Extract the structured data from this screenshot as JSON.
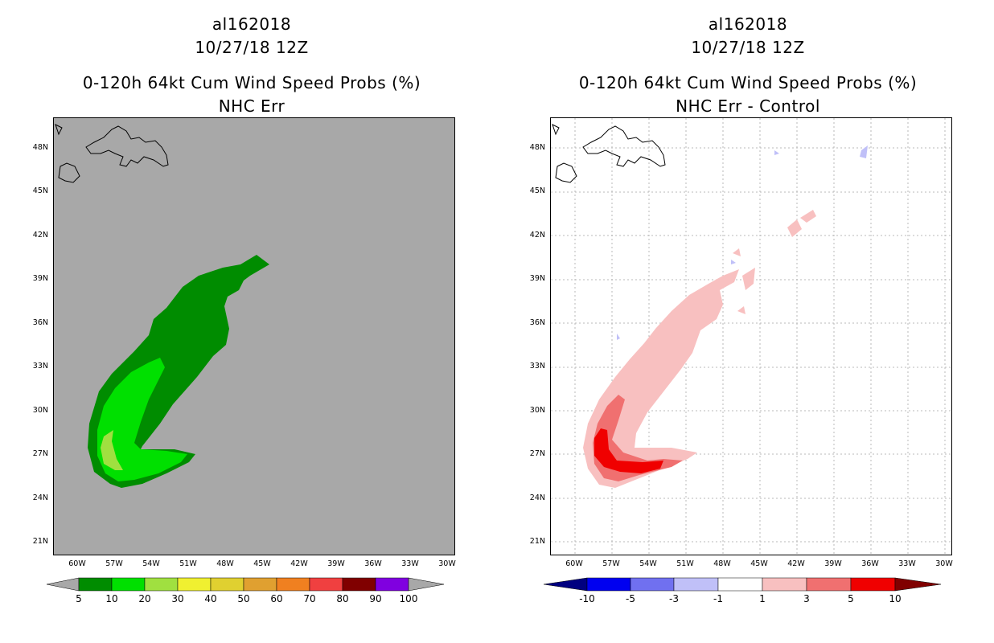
{
  "left_panel": {
    "title_storm": "al162018",
    "title_time": "10/27/18 12Z",
    "title_product": "0-120h 64kt Cum Wind Speed Probs (%)",
    "title_variant": "NHC Err",
    "colorbar_labels": [
      "5",
      "10",
      "20",
      "30",
      "40",
      "50",
      "60",
      "70",
      "80",
      "90",
      "100"
    ],
    "colorbar_colors": [
      "#008c00",
      "#00e000",
      "#a0e040",
      "#f0f030",
      "#e0d030",
      "#e0a030",
      "#f08020",
      "#f04040",
      "#a00000",
      "#800000",
      "#8000e0",
      "#a8a8a8"
    ]
  },
  "right_panel": {
    "title_storm": "al162018",
    "title_time": "10/27/18 12Z",
    "title_product": "0-120h 64kt Cum Wind Speed Probs (%)",
    "title_variant": "NHC Err - Control",
    "colorbar_labels": [
      "-10",
      "-5",
      "-3",
      "-1",
      "1",
      "3",
      "5",
      "10"
    ],
    "colorbar_colors": [
      "#000080",
      "#0000f0",
      "#7070f0",
      "#c0c0f8",
      "#ffffff",
      "#f8c0c0",
      "#f07070",
      "#f00000",
      "#800000"
    ]
  },
  "axes": {
    "lat_labels": [
      "48N",
      "45N",
      "42N",
      "39N",
      "36N",
      "33N",
      "30N",
      "27N",
      "24N",
      "21N"
    ],
    "lon_labels": [
      "60W",
      "57W",
      "54W",
      "51W",
      "48W",
      "45W",
      "42W",
      "39W",
      "36W",
      "33W",
      "30W"
    ]
  }
}
